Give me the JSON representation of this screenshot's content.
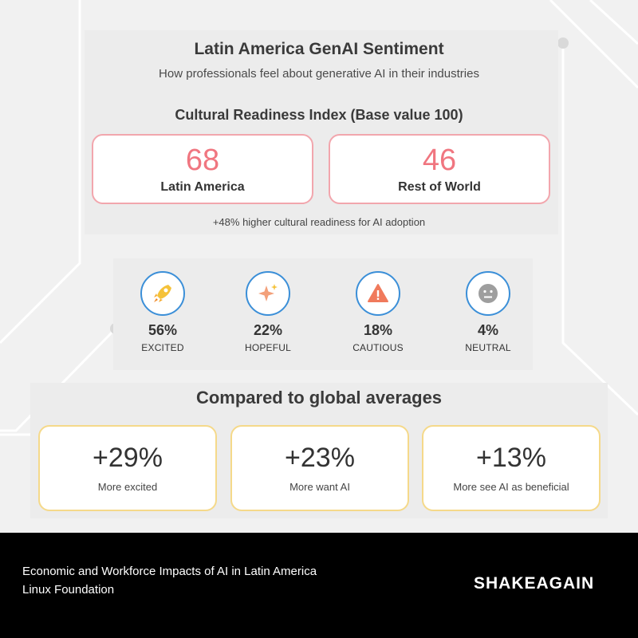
{
  "header": {
    "title": "Latin America GenAI Sentiment",
    "subtitle": "How professionals feel about generative AI in their industries"
  },
  "readiness": {
    "title": "Cultural Readiness Index (Base value 100)",
    "latam": {
      "value": "68",
      "label": "Latin America"
    },
    "rest": {
      "value": "46",
      "label": "Rest of World"
    },
    "note": "+48% higher cultural readiness for AI adoption",
    "accent_color": "#f07680"
  },
  "emotions": [
    {
      "pct": "56%",
      "label": "EXCITED",
      "icon": "rocket-icon"
    },
    {
      "pct": "22%",
      "label": "HOPEFUL",
      "icon": "sparkle-icon"
    },
    {
      "pct": "18%",
      "label": "CAUTIOUS",
      "icon": "warning-icon"
    },
    {
      "pct": "4%",
      "label": "NEUTRAL",
      "icon": "neutral-face-icon"
    }
  ],
  "comparison": {
    "title": "Compared to global averages",
    "items": [
      {
        "value": "+29%",
        "label": "More excited"
      },
      {
        "value": "+23%",
        "label": "More want AI"
      },
      {
        "value": "+13%",
        "label": "More see AI as beneficial"
      }
    ],
    "border_color": "#f5d98a"
  },
  "footer": {
    "line1": "Economic and Workforce Impacts of AI in Latin America",
    "line2": "Linux Foundation",
    "brand": "SHAKEAGAIN"
  }
}
